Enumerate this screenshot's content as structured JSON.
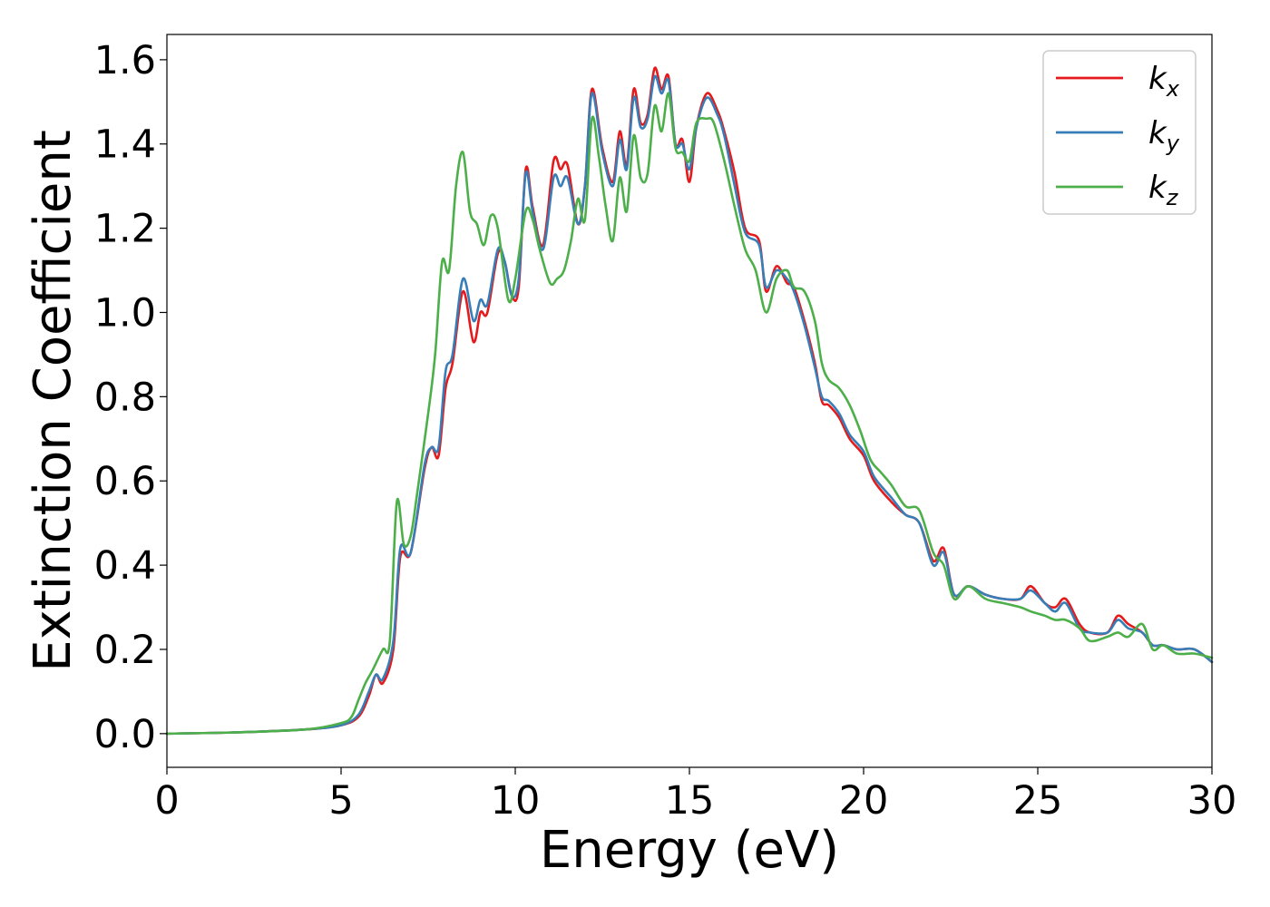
{
  "chart_data": {
    "type": "line",
    "xlabel": "Energy (eV)",
    "ylabel": "Extinction Coefficient",
    "xlim": [
      0,
      30
    ],
    "ylim": [
      -0.08,
      1.66
    ],
    "x_ticks": [
      "0",
      "5",
      "10",
      "15",
      "20",
      "25",
      "30"
    ],
    "y_ticks": [
      "0.0",
      "0.2",
      "0.4",
      "0.6",
      "0.8",
      "1.0",
      "1.2",
      "1.4",
      "1.6"
    ],
    "grid": false,
    "legend_position": "top-right",
    "series": [
      {
        "name": "k",
        "subscript": "x",
        "color": "#e41a1c",
        "points": [
          [
            0,
            0.0
          ],
          [
            2,
            0.003
          ],
          [
            4,
            0.01
          ],
          [
            5,
            0.02
          ],
          [
            5.5,
            0.04
          ],
          [
            5.8,
            0.09
          ],
          [
            6.0,
            0.14
          ],
          [
            6.2,
            0.12
          ],
          [
            6.5,
            0.2
          ],
          [
            6.7,
            0.42
          ],
          [
            7.0,
            0.43
          ],
          [
            7.4,
            0.63
          ],
          [
            7.6,
            0.68
          ],
          [
            7.8,
            0.66
          ],
          [
            8.0,
            0.82
          ],
          [
            8.2,
            0.88
          ],
          [
            8.5,
            1.05
          ],
          [
            8.8,
            0.93
          ],
          [
            9.0,
            1.0
          ],
          [
            9.2,
            1.0
          ],
          [
            9.5,
            1.14
          ],
          [
            9.7,
            1.12
          ],
          [
            9.9,
            1.04
          ],
          [
            10.1,
            1.06
          ],
          [
            10.3,
            1.34
          ],
          [
            10.5,
            1.25
          ],
          [
            10.8,
            1.16
          ],
          [
            11.1,
            1.36
          ],
          [
            11.3,
            1.34
          ],
          [
            11.5,
            1.35
          ],
          [
            11.8,
            1.21
          ],
          [
            12.0,
            1.3
          ],
          [
            12.2,
            1.53
          ],
          [
            12.5,
            1.39
          ],
          [
            12.8,
            1.31
          ],
          [
            13.0,
            1.43
          ],
          [
            13.2,
            1.35
          ],
          [
            13.4,
            1.53
          ],
          [
            13.6,
            1.45
          ],
          [
            13.8,
            1.47
          ],
          [
            14.0,
            1.58
          ],
          [
            14.2,
            1.53
          ],
          [
            14.4,
            1.56
          ],
          [
            14.6,
            1.4
          ],
          [
            14.8,
            1.41
          ],
          [
            15.0,
            1.31
          ],
          [
            15.2,
            1.44
          ],
          [
            15.5,
            1.52
          ],
          [
            15.8,
            1.48
          ],
          [
            16.0,
            1.43
          ],
          [
            16.3,
            1.33
          ],
          [
            16.6,
            1.2
          ],
          [
            17.0,
            1.17
          ],
          [
            17.2,
            1.05
          ],
          [
            17.5,
            1.11
          ],
          [
            17.8,
            1.07
          ],
          [
            18.0,
            1.06
          ],
          [
            18.3,
            0.98
          ],
          [
            18.6,
            0.88
          ],
          [
            18.8,
            0.79
          ],
          [
            19.0,
            0.78
          ],
          [
            19.3,
            0.75
          ],
          [
            19.6,
            0.7
          ],
          [
            20.0,
            0.66
          ],
          [
            20.3,
            0.6
          ],
          [
            20.8,
            0.55
          ],
          [
            21.2,
            0.52
          ],
          [
            21.6,
            0.5
          ],
          [
            22.0,
            0.41
          ],
          [
            22.3,
            0.44
          ],
          [
            22.6,
            0.33
          ],
          [
            23.0,
            0.35
          ],
          [
            23.5,
            0.33
          ],
          [
            24.0,
            0.32
          ],
          [
            24.5,
            0.32
          ],
          [
            24.8,
            0.35
          ],
          [
            25.2,
            0.31
          ],
          [
            25.5,
            0.3
          ],
          [
            25.8,
            0.32
          ],
          [
            26.2,
            0.26
          ],
          [
            26.5,
            0.24
          ],
          [
            27.0,
            0.24
          ],
          [
            27.3,
            0.28
          ],
          [
            27.6,
            0.26
          ],
          [
            28.0,
            0.24
          ],
          [
            28.3,
            0.21
          ],
          [
            28.6,
            0.21
          ],
          [
            29.0,
            0.2
          ],
          [
            29.5,
            0.2
          ],
          [
            30.0,
            0.17
          ]
        ]
      },
      {
        "name": "k",
        "subscript": "y",
        "color": "#377eb8",
        "points": [
          [
            0,
            0.0
          ],
          [
            2,
            0.003
          ],
          [
            4,
            0.01
          ],
          [
            5,
            0.02
          ],
          [
            5.5,
            0.045
          ],
          [
            5.8,
            0.1
          ],
          [
            6.0,
            0.14
          ],
          [
            6.2,
            0.13
          ],
          [
            6.5,
            0.22
          ],
          [
            6.7,
            0.44
          ],
          [
            7.0,
            0.43
          ],
          [
            7.4,
            0.64
          ],
          [
            7.6,
            0.68
          ],
          [
            7.8,
            0.68
          ],
          [
            8.0,
            0.86
          ],
          [
            8.2,
            0.9
          ],
          [
            8.5,
            1.08
          ],
          [
            8.8,
            0.98
          ],
          [
            9.0,
            1.03
          ],
          [
            9.2,
            1.02
          ],
          [
            9.5,
            1.15
          ],
          [
            9.7,
            1.12
          ],
          [
            9.9,
            1.04
          ],
          [
            10.1,
            1.08
          ],
          [
            10.3,
            1.33
          ],
          [
            10.5,
            1.24
          ],
          [
            10.8,
            1.15
          ],
          [
            11.1,
            1.32
          ],
          [
            11.3,
            1.3
          ],
          [
            11.5,
            1.32
          ],
          [
            11.8,
            1.21
          ],
          [
            12.0,
            1.3
          ],
          [
            12.2,
            1.52
          ],
          [
            12.5,
            1.38
          ],
          [
            12.8,
            1.3
          ],
          [
            13.0,
            1.41
          ],
          [
            13.2,
            1.34
          ],
          [
            13.4,
            1.51
          ],
          [
            13.6,
            1.44
          ],
          [
            13.8,
            1.46
          ],
          [
            14.0,
            1.56
          ],
          [
            14.2,
            1.52
          ],
          [
            14.4,
            1.55
          ],
          [
            14.6,
            1.4
          ],
          [
            14.8,
            1.4
          ],
          [
            15.0,
            1.34
          ],
          [
            15.2,
            1.44
          ],
          [
            15.5,
            1.51
          ],
          [
            15.8,
            1.47
          ],
          [
            16.0,
            1.42
          ],
          [
            16.3,
            1.3
          ],
          [
            16.6,
            1.19
          ],
          [
            17.0,
            1.16
          ],
          [
            17.2,
            1.06
          ],
          [
            17.5,
            1.1
          ],
          [
            17.8,
            1.08
          ],
          [
            18.0,
            1.05
          ],
          [
            18.3,
            0.97
          ],
          [
            18.6,
            0.87
          ],
          [
            18.8,
            0.8
          ],
          [
            19.0,
            0.79
          ],
          [
            19.3,
            0.76
          ],
          [
            19.6,
            0.71
          ],
          [
            20.0,
            0.67
          ],
          [
            20.3,
            0.61
          ],
          [
            20.8,
            0.56
          ],
          [
            21.2,
            0.52
          ],
          [
            21.6,
            0.5
          ],
          [
            22.0,
            0.4
          ],
          [
            22.3,
            0.43
          ],
          [
            22.6,
            0.33
          ],
          [
            23.0,
            0.35
          ],
          [
            23.5,
            0.33
          ],
          [
            24.0,
            0.32
          ],
          [
            24.5,
            0.32
          ],
          [
            24.8,
            0.34
          ],
          [
            25.2,
            0.31
          ],
          [
            25.5,
            0.29
          ],
          [
            25.8,
            0.31
          ],
          [
            26.2,
            0.25
          ],
          [
            26.5,
            0.24
          ],
          [
            27.0,
            0.24
          ],
          [
            27.3,
            0.27
          ],
          [
            27.6,
            0.25
          ],
          [
            28.0,
            0.24
          ],
          [
            28.3,
            0.21
          ],
          [
            28.6,
            0.21
          ],
          [
            29.0,
            0.2
          ],
          [
            29.5,
            0.2
          ],
          [
            30.0,
            0.17
          ]
        ]
      },
      {
        "name": "k",
        "subscript": "z",
        "color": "#4daf4a",
        "points": [
          [
            0,
            0.0
          ],
          [
            2,
            0.003
          ],
          [
            4,
            0.01
          ],
          [
            5,
            0.025
          ],
          [
            5.3,
            0.04
          ],
          [
            5.5,
            0.08
          ],
          [
            5.7,
            0.12
          ],
          [
            5.9,
            0.15
          ],
          [
            6.2,
            0.2
          ],
          [
            6.4,
            0.22
          ],
          [
            6.6,
            0.55
          ],
          [
            6.8,
            0.45
          ],
          [
            7.0,
            0.47
          ],
          [
            7.2,
            0.58
          ],
          [
            7.5,
            0.76
          ],
          [
            7.7,
            0.9
          ],
          [
            7.9,
            1.12
          ],
          [
            8.1,
            1.1
          ],
          [
            8.3,
            1.3
          ],
          [
            8.5,
            1.38
          ],
          [
            8.7,
            1.24
          ],
          [
            8.9,
            1.21
          ],
          [
            9.1,
            1.16
          ],
          [
            9.3,
            1.23
          ],
          [
            9.5,
            1.2
          ],
          [
            9.8,
            1.03
          ],
          [
            10.0,
            1.08
          ],
          [
            10.3,
            1.24
          ],
          [
            10.5,
            1.22
          ],
          [
            10.7,
            1.15
          ],
          [
            11.0,
            1.07
          ],
          [
            11.2,
            1.08
          ],
          [
            11.4,
            1.1
          ],
          [
            11.6,
            1.17
          ],
          [
            11.8,
            1.27
          ],
          [
            12.0,
            1.22
          ],
          [
            12.2,
            1.46
          ],
          [
            12.4,
            1.37
          ],
          [
            12.6,
            1.25
          ],
          [
            12.8,
            1.17
          ],
          [
            13.0,
            1.32
          ],
          [
            13.2,
            1.24
          ],
          [
            13.4,
            1.42
          ],
          [
            13.6,
            1.32
          ],
          [
            13.8,
            1.33
          ],
          [
            14.0,
            1.49
          ],
          [
            14.2,
            1.43
          ],
          [
            14.4,
            1.52
          ],
          [
            14.6,
            1.39
          ],
          [
            14.8,
            1.38
          ],
          [
            15.0,
            1.36
          ],
          [
            15.2,
            1.45
          ],
          [
            15.5,
            1.46
          ],
          [
            15.7,
            1.45
          ],
          [
            16.0,
            1.36
          ],
          [
            16.3,
            1.25
          ],
          [
            16.6,
            1.15
          ],
          [
            16.9,
            1.1
          ],
          [
            17.2,
            1.0
          ],
          [
            17.5,
            1.08
          ],
          [
            17.8,
            1.1
          ],
          [
            18.0,
            1.06
          ],
          [
            18.3,
            1.05
          ],
          [
            18.6,
            0.98
          ],
          [
            18.8,
            0.88
          ],
          [
            19.0,
            0.84
          ],
          [
            19.3,
            0.82
          ],
          [
            19.6,
            0.78
          ],
          [
            19.9,
            0.72
          ],
          [
            20.2,
            0.65
          ],
          [
            20.5,
            0.62
          ],
          [
            20.8,
            0.59
          ],
          [
            21.2,
            0.54
          ],
          [
            21.6,
            0.53
          ],
          [
            22.0,
            0.43
          ],
          [
            22.3,
            0.4
          ],
          [
            22.6,
            0.32
          ],
          [
            23.0,
            0.35
          ],
          [
            23.5,
            0.32
          ],
          [
            24.0,
            0.31
          ],
          [
            24.5,
            0.3
          ],
          [
            24.8,
            0.29
          ],
          [
            25.2,
            0.28
          ],
          [
            25.5,
            0.27
          ],
          [
            25.8,
            0.27
          ],
          [
            26.2,
            0.25
          ],
          [
            26.5,
            0.22
          ],
          [
            27.0,
            0.23
          ],
          [
            27.3,
            0.24
          ],
          [
            27.6,
            0.23
          ],
          [
            28.0,
            0.26
          ],
          [
            28.3,
            0.2
          ],
          [
            28.6,
            0.21
          ],
          [
            29.0,
            0.19
          ],
          [
            29.5,
            0.19
          ],
          [
            30.0,
            0.18
          ]
        ]
      }
    ]
  }
}
